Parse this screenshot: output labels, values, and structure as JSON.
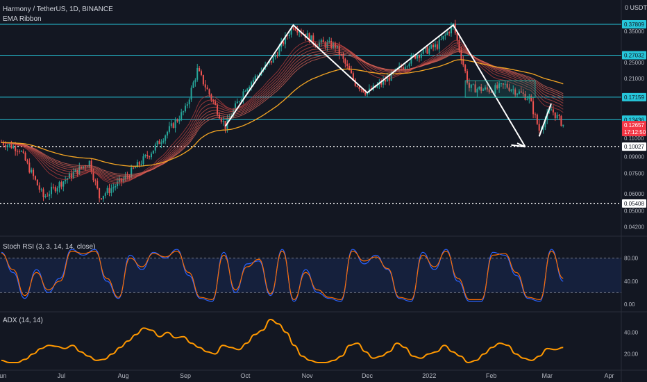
{
  "header": {
    "symbol_line": "Harmony / TetherUS, 1D, BINANCE",
    "indicator_line": "EMA Ribbon",
    "currency": "0 USDT"
  },
  "current_price": {
    "value": "0.12657",
    "timer": "17:12:50",
    "color": "#f23645"
  },
  "colors": {
    "background": "#131722",
    "level_line": "#26c6da",
    "ema_long": "#f5a623",
    "rsi_k": "#2962ff",
    "rsi_d": "#ff6d00",
    "adx": "#ff9800",
    "up": "#26a69a",
    "down": "#ef5350",
    "drawing": "#ffffff"
  },
  "chart_data": [
    {
      "type": "candlestick",
      "title": "Harmony / TetherUS, 1D, BINANCE",
      "scale": "log",
      "y_ticks": [
        "0.35000",
        "0.25000",
        "0.21000",
        "0.11000",
        "0.09000",
        "0.07500",
        "0.06000",
        "0.05000",
        "0.04200"
      ],
      "horizontal_levels": [
        {
          "value": 0.37809,
          "label": "0.37809",
          "style": "solid"
        },
        {
          "value": 0.27032,
          "label": "0.27032",
          "style": "solid"
        },
        {
          "value": 0.17159,
          "label": "0.17159",
          "style": "solid"
        },
        {
          "value": 0.13436,
          "label": "0.13436",
          "style": "solid"
        },
        {
          "value": 0.10027,
          "label": "0.10027",
          "style": "dotted"
        },
        {
          "value": 0.05408,
          "label": "0.05408",
          "style": "dotted"
        }
      ],
      "x_ticks": [
        "Jun",
        "Jul",
        "Aug",
        "Sep",
        "Oct",
        "Nov",
        "Dec",
        "2022",
        "Feb",
        "Mar",
        "Apr"
      ],
      "price_path": [
        {
          "date": "2021-06-01",
          "close": 0.105
        },
        {
          "date": "2021-06-10",
          "close": 0.098
        },
        {
          "date": "2021-06-22",
          "close": 0.058
        },
        {
          "date": "2021-07-01",
          "close": 0.068
        },
        {
          "date": "2021-07-15",
          "close": 0.085
        },
        {
          "date": "2021-07-20",
          "close": 0.058
        },
        {
          "date": "2021-08-01",
          "close": 0.07
        },
        {
          "date": "2021-08-15",
          "close": 0.095
        },
        {
          "date": "2021-09-01",
          "close": 0.15
        },
        {
          "date": "2021-09-07",
          "close": 0.23
        },
        {
          "date": "2021-09-21",
          "close": 0.125
        },
        {
          "date": "2021-10-01",
          "close": 0.19
        },
        {
          "date": "2021-10-15",
          "close": 0.26
        },
        {
          "date": "2021-10-25",
          "close": 0.375
        },
        {
          "date": "2021-11-05",
          "close": 0.31
        },
        {
          "date": "2021-11-15",
          "close": 0.3
        },
        {
          "date": "2021-11-25",
          "close": 0.2
        },
        {
          "date": "2021-12-01",
          "close": 0.18
        },
        {
          "date": "2021-12-10",
          "close": 0.205
        },
        {
          "date": "2021-12-25",
          "close": 0.27
        },
        {
          "date": "2022-01-05",
          "close": 0.3
        },
        {
          "date": "2022-01-13",
          "close": 0.375
        },
        {
          "date": "2022-01-21",
          "close": 0.19
        },
        {
          "date": "2022-02-01",
          "close": 0.185
        },
        {
          "date": "2022-02-08",
          "close": 0.195
        },
        {
          "date": "2022-02-20",
          "close": 0.17
        },
        {
          "date": "2022-02-25",
          "close": 0.12
        },
        {
          "date": "2022-03-03",
          "close": 0.15
        },
        {
          "date": "2022-03-09",
          "close": 0.127
        }
      ]
    },
    {
      "type": "line",
      "title": "Stoch RSI (3, 3, 14, 14, close)",
      "y_ticks": [
        "80.00",
        "40.00",
        "0.00"
      ],
      "bands": [
        80,
        20
      ],
      "series": [
        {
          "values": [
            90,
            55,
            10,
            60,
            20,
            45,
            95,
            85,
            95,
            40,
            10,
            85,
            60,
            90,
            80,
            95,
            50,
            10,
            5,
            90,
            20,
            70,
            75,
            15,
            95,
            5,
            60,
            20,
            10,
            5,
            95,
            70,
            85,
            60,
            10,
            5,
            90,
            60,
            95,
            40,
            5,
            5,
            90,
            85,
            50,
            10,
            5,
            95,
            40
          ]
        },
        {
          "values": [
            88,
            60,
            15,
            55,
            25,
            40,
            92,
            88,
            92,
            45,
            12,
            80,
            65,
            88,
            82,
            92,
            55,
            12,
            8,
            85,
            25,
            65,
            78,
            18,
            92,
            8,
            55,
            25,
            12,
            8,
            92,
            75,
            82,
            62,
            12,
            8,
            85,
            65,
            92,
            45,
            8,
            8,
            85,
            88,
            55,
            12,
            8,
            92,
            45
          ]
        }
      ]
    },
    {
      "type": "line",
      "title": "ADX (14, 14)",
      "y_ticks": [
        "40.00",
        "20.00"
      ],
      "series": [
        {
          "values": [
            14,
            12,
            12,
            15,
            20,
            25,
            28,
            27,
            25,
            28,
            22,
            18,
            14,
            15,
            20,
            26,
            32,
            38,
            44,
            42,
            36,
            40,
            35,
            36,
            30,
            26,
            22,
            20,
            28,
            26,
            24,
            30,
            38,
            42,
            52,
            48,
            40,
            28,
            18,
            14,
            12,
            12,
            14,
            18,
            28,
            30,
            22,
            16,
            18,
            22,
            30,
            26,
            18,
            16,
            20,
            22,
            28,
            22,
            18,
            12,
            14,
            20,
            26,
            30,
            28,
            20,
            16,
            14,
            18,
            25,
            24,
            26
          ]
        }
      ]
    }
  ]
}
